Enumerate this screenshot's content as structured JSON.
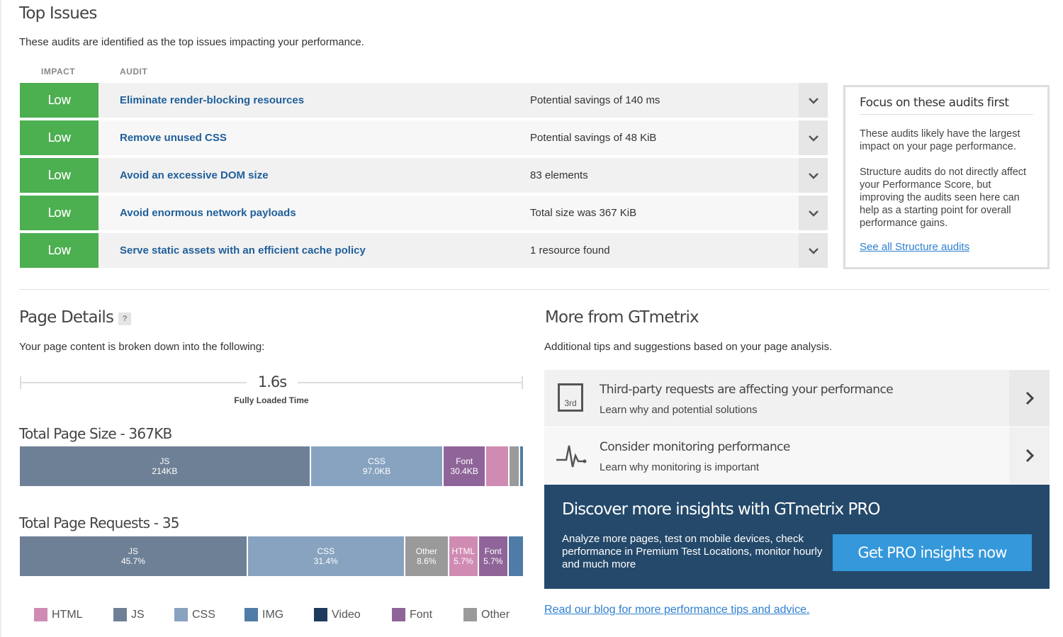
{
  "top_issues": {
    "title": "Top Issues",
    "subtitle": "These audits are identified as the top issues impacting your performance.",
    "col_impact": "IMPACT",
    "col_audit": "AUDIT",
    "impact_color": "#4caf50",
    "rows": [
      {
        "impact": "Low",
        "audit": "Eliminate render-blocking resources",
        "value": "Potential savings of 140 ms"
      },
      {
        "impact": "Low",
        "audit": "Remove unused CSS",
        "value": "Potential savings of 48 KiB"
      },
      {
        "impact": "Low",
        "audit": "Avoid an excessive DOM size",
        "value": "83 elements"
      },
      {
        "impact": "Low",
        "audit": "Avoid enormous network payloads",
        "value": "Total size was 367 KiB"
      },
      {
        "impact": "Low",
        "audit": "Serve static assets with an efficient cache policy",
        "value": "1 resource found"
      }
    ]
  },
  "focus": {
    "title": "Focus on these audits first",
    "p1": "These audits likely have the largest impact on your page performance.",
    "p2": "Structure audits do not directly affect your Performance Score, but improving the audits seen here can help as a starting point for overall performance gains.",
    "link": "See all Structure audits"
  },
  "page_details": {
    "title": "Page Details",
    "help": "?",
    "subtitle": "Your page content is broken down into the following:",
    "fully_loaded_value": "1.6s",
    "fully_loaded_label": "Fully Loaded Time",
    "size_title": "Total Page Size - 367KB",
    "requests_title": "Total Page Requests - 35"
  },
  "chart_data": [
    {
      "type": "bar",
      "title": "Total Page Size - 367KB",
      "unit": "KB",
      "segments": [
        {
          "category": "JS",
          "value": 214,
          "label": "214KB",
          "color": "#6e8096"
        },
        {
          "category": "CSS",
          "value": 97.0,
          "label": "97.0KB",
          "color": "#87a3bf"
        },
        {
          "category": "Font",
          "value": 30.4,
          "label": "30.4KB",
          "color": "#8f6599"
        },
        {
          "category": "HTML",
          "value": 16,
          "color": "#d08bb3"
        },
        {
          "category": "Other",
          "value": 7,
          "color": "#9a9a9a"
        },
        {
          "category": "IMG",
          "value": 2,
          "color": "#4f7ca6"
        }
      ]
    },
    {
      "type": "bar",
      "title": "Total Page Requests - 35",
      "unit": "%",
      "segments": [
        {
          "category": "JS",
          "value": 45.7,
          "label": "45.7%",
          "color": "#6e8096"
        },
        {
          "category": "CSS",
          "value": 31.4,
          "label": "31.4%",
          "color": "#87a3bf"
        },
        {
          "category": "Other",
          "value": 8.6,
          "label": "8.6%",
          "color": "#9a9a9a"
        },
        {
          "category": "HTML",
          "value": 5.7,
          "label": "5.7%",
          "color": "#d08bb3"
        },
        {
          "category": "Font",
          "value": 5.7,
          "label": "5.7%",
          "color": "#8f6599"
        },
        {
          "category": "IMG",
          "value": 2.9,
          "color": "#4f7ca6"
        }
      ]
    }
  ],
  "legend": [
    {
      "label": "HTML",
      "color": "#d08bb3"
    },
    {
      "label": "JS",
      "color": "#6e8096"
    },
    {
      "label": "CSS",
      "color": "#87a3bf"
    },
    {
      "label": "IMG",
      "color": "#4f7ca6"
    },
    {
      "label": "Video",
      "color": "#1e3a5c"
    },
    {
      "label": "Font",
      "color": "#8f6599"
    },
    {
      "label": "Other",
      "color": "#9a9a9a"
    }
  ],
  "more": {
    "title": "More from GTmetrix",
    "subtitle": "Additional tips and suggestions based on your page analysis.",
    "cards": [
      {
        "icon": "3rd",
        "title": "Third-party requests are affecting your performance",
        "subtitle": "Learn why and potential solutions"
      },
      {
        "title": "Consider monitoring performance",
        "subtitle": "Learn why monitoring is important"
      }
    ],
    "pro": {
      "title": "Discover more insights with GTmetrix PRO",
      "text": "Analyze more pages, test on mobile devices, check performance in Premium Test Locations, monitor hourly and much more",
      "button": "Get PRO insights now"
    },
    "blog_link": "Read our blog for more performance tips and advice."
  }
}
